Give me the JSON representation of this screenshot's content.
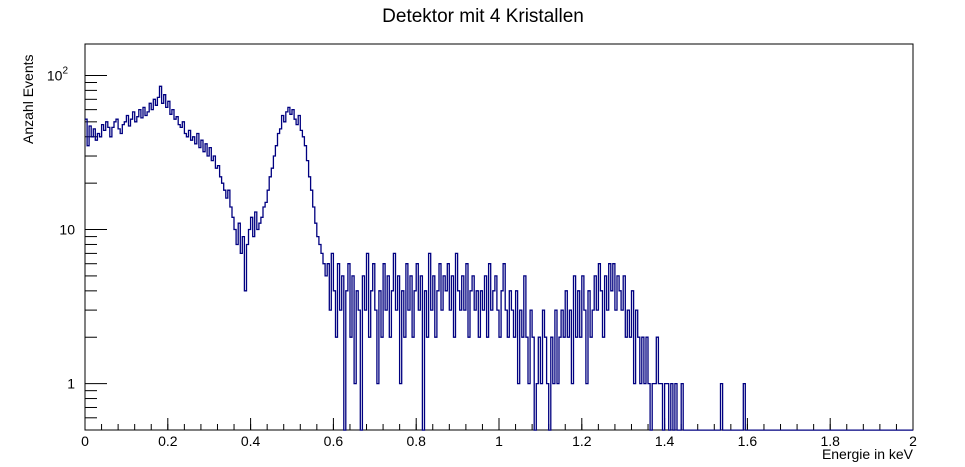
{
  "chart_data": {
    "type": "histogram",
    "title": "Detektor mit 4 Kristallen",
    "xlabel": "Energie in keV",
    "ylabel": "Anzahl Events",
    "xlim": [
      0,
      2
    ],
    "ylim": [
      0.5,
      160
    ],
    "y_scale": "log",
    "x_ticks": [
      "0",
      "0.2",
      "0.4",
      "0.6",
      "0.8",
      "1",
      "1.2",
      "1.4",
      "1.6",
      "1.8",
      "2"
    ],
    "y_ticks": [
      {
        "value": 1,
        "label": "1"
      },
      {
        "value": 10,
        "label": "10"
      },
      {
        "value": 100,
        "label": "10",
        "exponent": "2"
      }
    ],
    "bin_width": 0.005,
    "series": [
      {
        "color": "#000080",
        "bins": [
          {
            "x0": 0.0,
            "x1": 0.02,
            "values": [
              52,
              35,
              47,
              40
            ]
          },
          {
            "x0": 0.02,
            "x1": 0.06,
            "values": [
              45,
              38,
              42,
              40,
              48,
              44,
              50,
              46
            ]
          },
          {
            "x0": 0.06,
            "x1": 0.1,
            "values": [
              40,
              46,
              50,
              52,
              45,
              42,
              48,
              50
            ]
          },
          {
            "x0": 0.1,
            "x1": 0.14,
            "values": [
              55,
              47,
              52,
              58,
              50,
              54,
              60,
              53
            ]
          },
          {
            "x0": 0.14,
            "x1": 0.18,
            "values": [
              62,
              55,
              58,
              66,
              60,
              70,
              64,
              72
            ]
          },
          {
            "x0": 0.18,
            "x1": 0.22,
            "values": [
              85,
              66,
              75,
              62,
              68,
              56,
              60,
              52
            ]
          },
          {
            "x0": 0.22,
            "x1": 0.26,
            "values": [
              54,
              48,
              46,
              50,
              42,
              40,
              44,
              38
            ]
          },
          {
            "x0": 0.26,
            "x1": 0.3,
            "values": [
              40,
              36,
              42,
              34,
              38,
              32,
              36,
              30
            ]
          },
          {
            "x0": 0.3,
            "x1": 0.33,
            "values": [
              34,
              28,
              30,
              25,
              26,
              22
            ]
          },
          {
            "x0": 0.33,
            "x1": 0.36,
            "values": [
              20,
              18,
              16,
              18,
              14,
              12
            ]
          },
          {
            "x0": 0.36,
            "x1": 0.4,
            "values": [
              10,
              8,
              11,
              7,
              9,
              4,
              8,
              10
            ]
          },
          {
            "x0": 0.4,
            "x1": 0.44,
            "values": [
              12,
              9,
              13,
              10,
              11,
              12,
              14,
              15
            ]
          },
          {
            "x0": 0.44,
            "x1": 0.47,
            "values": [
              18,
              22,
              25,
              30,
              35,
              42
            ]
          },
          {
            "x0": 0.47,
            "x1": 0.51,
            "values": [
              45,
              55,
              50,
              58,
              62,
              56,
              60,
              52
            ]
          },
          {
            "x0": 0.51,
            "x1": 0.55,
            "values": [
              48,
              55,
              44,
              40,
              35,
              28,
              22,
              18
            ]
          },
          {
            "x0": 0.55,
            "x1": 0.59,
            "values": [
              14,
              11,
              9,
              8,
              7,
              6,
              5,
              6
            ]
          },
          {
            "x0": 0.59,
            "x1": 0.63,
            "values": [
              3,
              7,
              4,
              2,
              6,
              3,
              5,
              0.4
            ]
          },
          {
            "x0": 0.63,
            "x1": 0.67,
            "values": [
              4,
              6,
              2,
              5,
              1,
              4,
              3,
              0.4
            ]
          },
          {
            "x0": 0.67,
            "x1": 0.71,
            "values": [
              5,
              3,
              7,
              2,
              4,
              6,
              3,
              1
            ]
          },
          {
            "x0": 0.71,
            "x1": 0.75,
            "values": [
              4,
              2,
              6,
              3,
              5,
              2,
              4,
              7
            ]
          },
          {
            "x0": 0.75,
            "x1": 0.79,
            "values": [
              3,
              5,
              1,
              4,
              2,
              6,
              3,
              5
            ]
          },
          {
            "x0": 0.79,
            "x1": 0.83,
            "values": [
              2,
              4,
              6,
              3,
              5,
              0.4,
              4,
              2
            ]
          },
          {
            "x0": 0.83,
            "x1": 0.87,
            "values": [
              7,
              3,
              5,
              2,
              4,
              6,
              3,
              5
            ]
          },
          {
            "x0": 0.87,
            "x1": 0.91,
            "values": [
              4,
              6,
              3,
              5,
              2,
              7,
              4,
              3
            ]
          },
          {
            "x0": 0.91,
            "x1": 0.95,
            "values": [
              5,
              3,
              6,
              2,
              4,
              5,
              3,
              4
            ]
          },
          {
            "x0": 0.95,
            "x1": 0.99,
            "values": [
              2,
              4,
              3,
              5,
              2,
              6,
              3,
              4
            ]
          },
          {
            "x0": 0.99,
            "x1": 1.03,
            "values": [
              5,
              3,
              2,
              4,
              6,
              3,
              2,
              4
            ]
          },
          {
            "x0": 1.03,
            "x1": 1.07,
            "values": [
              3,
              2,
              4,
              1,
              3,
              2,
              5,
              2
            ]
          },
          {
            "x0": 1.07,
            "x1": 1.11,
            "values": [
              1,
              3,
              2,
              0.4,
              1,
              2,
              1,
              3
            ]
          },
          {
            "x0": 1.11,
            "x1": 1.15,
            "values": [
              2,
              1,
              0.4,
              2,
              1,
              3,
              1,
              2
            ]
          },
          {
            "x0": 1.15,
            "x1": 1.19,
            "values": [
              3,
              2,
              4,
              2,
              3,
              1,
              5,
              2
            ]
          },
          {
            "x0": 1.19,
            "x1": 1.23,
            "values": [
              4,
              2,
              5,
              3,
              1,
              4,
              2,
              3
            ]
          },
          {
            "x0": 1.23,
            "x1": 1.27,
            "values": [
              5,
              3,
              6,
              4,
              2,
              5,
              3,
              6
            ]
          },
          {
            "x0": 1.27,
            "x1": 1.31,
            "values": [
              4,
              6,
              3,
              5,
              4,
              3,
              5,
              2
            ]
          },
          {
            "x0": 1.31,
            "x1": 1.35,
            "values": [
              3,
              2,
              4,
              1,
              3,
              2,
              1,
              2
            ]
          },
          {
            "x0": 1.35,
            "x1": 1.39,
            "values": [
              1,
              2,
              1,
              0.4,
              1,
              1,
              2,
              1
            ]
          },
          {
            "x0": 1.39,
            "x1": 1.43,
            "values": [
              1,
              0.4,
              1,
              1,
              0.4,
              1,
              0.4,
              1
            ]
          },
          {
            "x0": 1.43,
            "x1": 1.47,
            "values": [
              0.4,
              0.4,
              1,
              0.4,
              0.4,
              0.4,
              0.4,
              0.4
            ]
          },
          {
            "x0": 1.47,
            "x1": 1.51,
            "values": [
              0.4,
              0.4,
              0.4,
              0.4,
              0.4,
              0.4,
              0.4,
              0.4
            ]
          },
          {
            "x0": 1.51,
            "x1": 1.55,
            "values": [
              0.4,
              0.4,
              0.4,
              0.4,
              0.4,
              1,
              0.4,
              0.4
            ]
          },
          {
            "x0": 1.55,
            "x1": 1.59,
            "values": [
              0.4,
              0.4,
              0.4,
              0.4,
              0.4,
              0.4,
              0.4,
              0.4
            ]
          },
          {
            "x0": 1.59,
            "x1": 1.63,
            "values": [
              1,
              0.4,
              0.4,
              0.4,
              0.4,
              0.4,
              0.4,
              0.4
            ]
          },
          {
            "x0": 1.63,
            "x1": 2.0,
            "values": [
              0.4,
              0.4,
              0.4,
              0.4,
              0.4,
              0.4,
              0.4,
              0.4,
              0.4,
              0.4,
              0.4,
              0.4,
              0.4,
              0.4,
              0.4,
              0.4,
              0.4,
              0.4,
              0.4,
              0.4,
              0.4,
              0.4,
              0.4,
              0.4,
              0.4,
              0.4,
              0.4,
              0.4,
              0.4,
              0.4,
              0.4,
              0.4,
              0.4,
              0.4,
              0.4,
              0.4,
              0.4,
              0.4,
              0.4,
              0.4,
              0.4,
              0.4,
              0.4,
              0.4,
              0.4,
              0.4,
              0.4,
              0.4,
              0.4,
              0.4,
              0.4,
              0.4,
              0.4,
              0.4,
              0.4,
              0.4,
              0.4,
              0.4,
              0.4,
              0.4,
              0.4,
              0.4,
              0.4,
              0.4,
              0.4,
              0.4,
              0.4,
              0.4,
              0.4,
              0.4,
              0.4,
              0.4,
              0.4,
              0.4
            ]
          }
        ]
      }
    ],
    "grid": false,
    "legend": "none"
  }
}
